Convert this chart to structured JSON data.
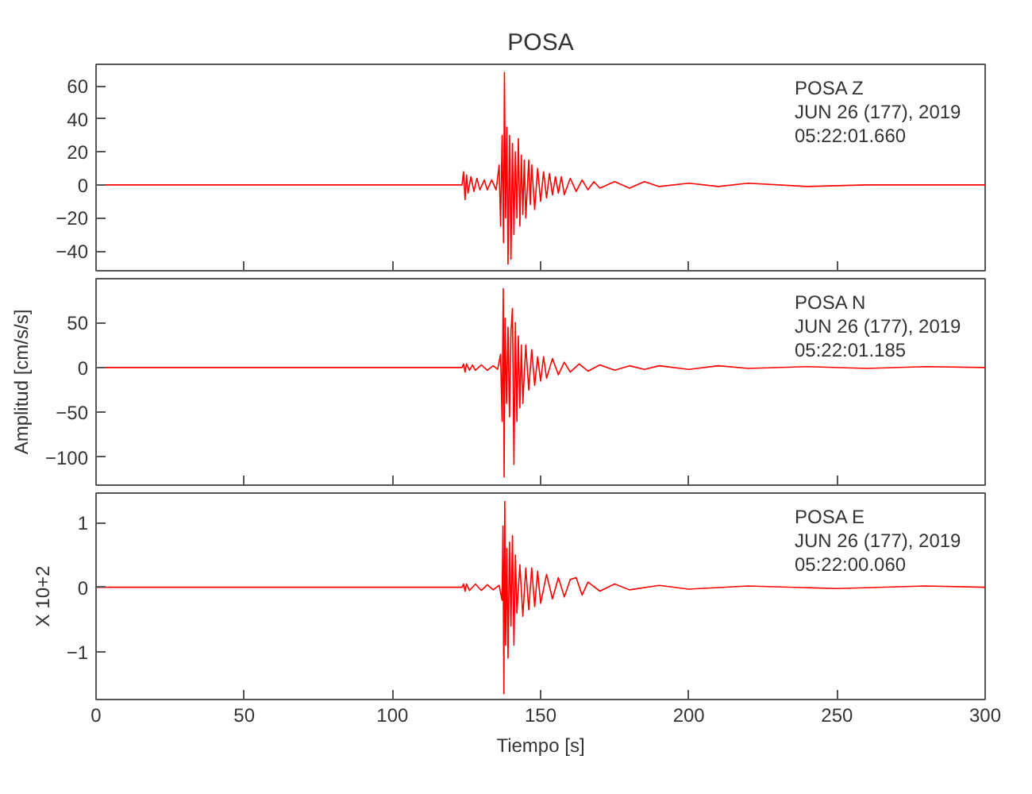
{
  "chart_data": [
    {
      "type": "line",
      "title": "POSA",
      "tick_labels": "y",
      "xlim": [
        0,
        300
      ],
      "ylim": [
        -52,
        73
      ],
      "xticks": [
        {
          "value": 0,
          "label": null
        },
        {
          "value": 50,
          "label": null
        },
        {
          "value": 100,
          "label": null
        },
        {
          "value": 150,
          "label": null
        },
        {
          "value": 200,
          "label": null
        },
        {
          "value": 250,
          "label": null
        },
        {
          "value": 300,
          "label": null
        }
      ],
      "yticks": [
        -40,
        -20,
        0,
        20,
        40,
        60
      ],
      "annotations": [
        "POSA   Z",
        "JUN 26 (177), 2019",
        "05:22:01.660"
      ],
      "grid": false,
      "marker": "none",
      "line_style": "solid",
      "series": [
        {
          "color": "#ff0000",
          "x": [
            0,
            123.5,
            124,
            124.5,
            125,
            125.5,
            126.5,
            127.5,
            128.5,
            129.5,
            131,
            132,
            133.5,
            135,
            136,
            136.5,
            137,
            137.5,
            137.8,
            138.2,
            138.6,
            139,
            139.5,
            140,
            140.5,
            141,
            141.5,
            142,
            142.5,
            143,
            143.5,
            144,
            144.5,
            145,
            146,
            146.5,
            147,
            148,
            149,
            150,
            151,
            152,
            153,
            154,
            155,
            156,
            157,
            158,
            160,
            162,
            164,
            166,
            168,
            170,
            175,
            180,
            185,
            190,
            200,
            210,
            220,
            240,
            260,
            280,
            300
          ],
          "values": [
            0,
            0,
            8,
            -9,
            6,
            -5,
            5,
            -4,
            4,
            -3,
            3,
            -3,
            3,
            -3,
            12,
            -25,
            30,
            -35,
            68,
            -20,
            35,
            -48,
            30,
            -45,
            25,
            -30,
            20,
            -20,
            28,
            -25,
            18,
            -18,
            15,
            -20,
            15,
            -12,
            12,
            -15,
            10,
            -10,
            8,
            -8,
            7,
            -6,
            5,
            -5,
            5,
            -6,
            4,
            -4,
            3,
            -3,
            2,
            -2,
            2,
            -2,
            2,
            -1,
            1,
            -1,
            1,
            -1,
            0,
            0,
            0
          ]
        }
      ]
    },
    {
      "type": "line",
      "ylabel": "Amplitud [cm/s/s]",
      "tick_labels": "y",
      "xlim": [
        0,
        300
      ],
      "ylim": [
        -131,
        99
      ],
      "xticks": [
        {
          "value": 0,
          "label": null
        },
        {
          "value": 50,
          "label": null
        },
        {
          "value": 100,
          "label": null
        },
        {
          "value": 150,
          "label": null
        },
        {
          "value": 200,
          "label": null
        },
        {
          "value": 250,
          "label": null
        },
        {
          "value": 300,
          "label": null
        }
      ],
      "yticks": [
        -100,
        -50,
        0,
        50
      ],
      "annotations": [
        "POSA   N",
        "JUN 26 (177), 2019",
        "05:22:01.185"
      ],
      "grid": false,
      "marker": "none",
      "line_style": "solid",
      "series": [
        {
          "color": "#ff0000",
          "x": [
            0,
            123.5,
            124,
            124.5,
            125,
            126,
            127,
            128,
            130,
            132,
            134,
            135.5,
            136.5,
            137,
            137.4,
            137.7,
            138,
            138.5,
            139,
            139.5,
            140,
            140.5,
            141,
            141.5,
            142,
            142.5,
            143,
            143.5,
            144,
            145,
            146,
            147,
            148,
            149,
            150,
            151,
            152,
            154,
            156,
            158,
            160,
            163,
            166,
            170,
            175,
            180,
            185,
            190,
            200,
            210,
            220,
            240,
            260,
            280,
            300
          ],
          "values": [
            0,
            0,
            4,
            -5,
            4,
            -3,
            3,
            -3,
            3,
            -3,
            2,
            -2,
            15,
            -60,
            88,
            -122,
            55,
            -40,
            45,
            -55,
            40,
            66,
            -108,
            50,
            -60,
            35,
            -45,
            25,
            -40,
            25,
            -25,
            20,
            -20,
            12,
            -15,
            12,
            -12,
            10,
            -8,
            6,
            -5,
            4,
            -4,
            3,
            -3,
            2,
            -2,
            2,
            -2,
            2,
            -1,
            1,
            -1,
            1,
            0
          ]
        }
      ]
    },
    {
      "type": "line",
      "ylabel": "X 10+2",
      "xlabel": "Tiempo [s]",
      "xlim": [
        0,
        300
      ],
      "ylim": [
        -1.74,
        1.46
      ],
      "xticks": [
        0,
        50,
        100,
        150,
        200,
        250,
        300
      ],
      "yticks": [
        -1,
        0,
        1
      ],
      "annotations": [
        "POSA   E",
        "JUN 26 (177), 2019",
        "05:22:00.060"
      ],
      "grid": false,
      "marker": "none",
      "line_style": "solid",
      "series": [
        {
          "color": "#ff0000",
          "x": [
            0,
            123.5,
            124,
            124.5,
            125,
            126,
            128,
            130,
            132,
            134,
            136,
            137,
            137.3,
            137.6,
            137.9,
            138.2,
            138.6,
            139,
            139.5,
            140,
            140.5,
            141,
            141.5,
            142,
            143,
            144,
            145,
            146,
            147,
            148,
            149,
            150,
            152,
            154,
            156,
            158,
            160,
            162,
            164,
            166,
            170,
            175,
            180,
            190,
            200,
            220,
            250,
            280,
            300
          ],
          "values": [
            0,
            0,
            0.05,
            -0.06,
            0.05,
            -0.05,
            0.05,
            -0.05,
            0.04,
            -0.04,
            0.03,
            -0.2,
            0.95,
            -1.65,
            1.33,
            -0.9,
            0.6,
            -1.1,
            0.7,
            -0.6,
            0.8,
            -0.9,
            0.5,
            -0.4,
            0.35,
            -0.45,
            0.3,
            -0.35,
            0.3,
            -0.3,
            0.25,
            -0.25,
            0.2,
            -0.18,
            0.15,
            -0.15,
            0.12,
            0.15,
            -0.12,
            0.08,
            -0.06,
            0.05,
            -0.04,
            0.03,
            -0.03,
            0.02,
            -0.02,
            0.02,
            0
          ]
        }
      ]
    }
  ]
}
